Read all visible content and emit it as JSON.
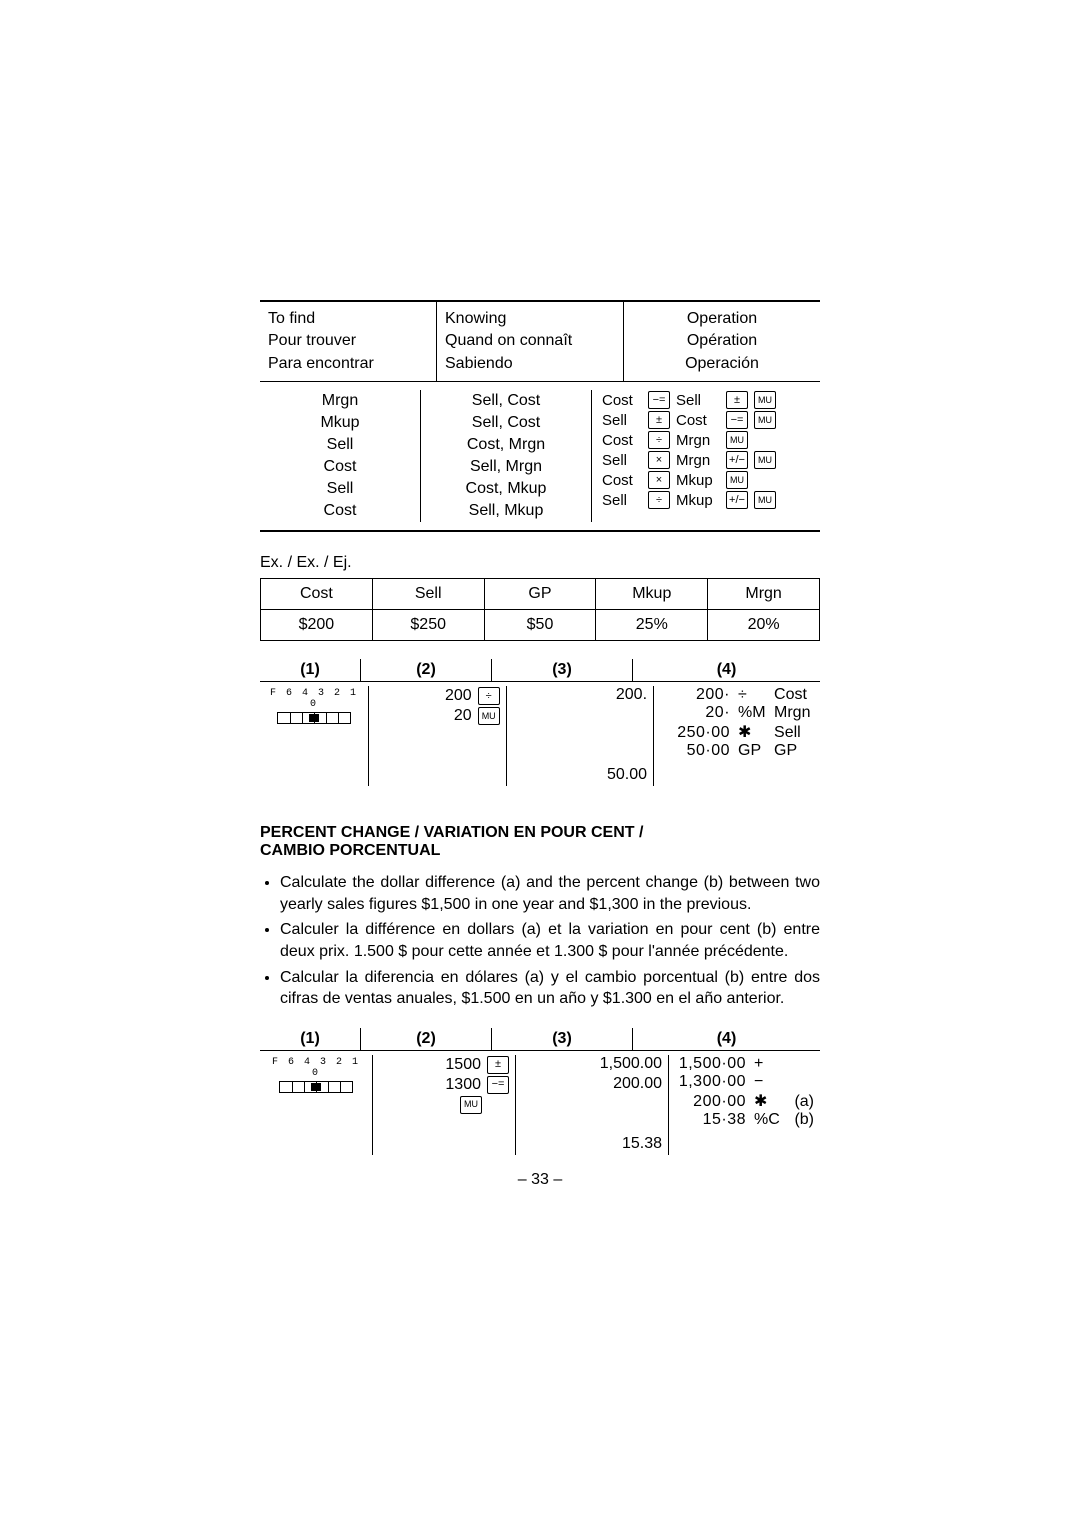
{
  "lookup": {
    "header_col1": "To find\nPour trouver\nPara encontrar",
    "header_col2": "Knowing\nQuand on connaît\nSabiendo",
    "header_col3": "Operation\nOpération\nOperación",
    "rows": [
      {
        "find": "Mrgn",
        "know": "Sell, Cost",
        "a": "Cost",
        "k1": "−=",
        "b": "Sell",
        "k2": "±",
        "k3": "MU"
      },
      {
        "find": "Mkup",
        "know": "Sell, Cost",
        "a": "Sell",
        "k1": "±",
        "b": "Cost",
        "k2": "−=",
        "k3": "MU"
      },
      {
        "find": "Sell",
        "know": "Cost, Mrgn",
        "a": "Cost",
        "k1": "÷",
        "b": "Mrgn",
        "k2": "MU",
        "k3": ""
      },
      {
        "find": "Cost",
        "know": "Sell, Mrgn",
        "a": "Sell",
        "k1": "×",
        "b": "Mrgn",
        "k2": "+/−",
        "k3": "MU"
      },
      {
        "find": "Sell",
        "know": "Cost, Mkup",
        "a": "Cost",
        "k1": "×",
        "b": "Mkup",
        "k2": "MU",
        "k3": ""
      },
      {
        "find": "Cost",
        "know": "Sell, Mkup",
        "a": "Sell",
        "k1": "÷",
        "b": "Mkup",
        "k2": "+/−",
        "k3": "MU"
      }
    ]
  },
  "example_label": "Ex. / Ex. / Ej.",
  "example_table": {
    "cols": [
      {
        "h": "Cost",
        "v": "$200"
      },
      {
        "h": "Sell",
        "v": "$250"
      },
      {
        "h": "GP",
        "v": "$50"
      },
      {
        "h": "Mkup",
        "v": "25%"
      },
      {
        "h": "Mrgn",
        "v": "20%"
      }
    ]
  },
  "steps1": {
    "headers": [
      "(1)",
      "(2)",
      "(3)",
      "(4)"
    ],
    "switch_label": "F 6 4 3 2 1 0",
    "switch_knob_left_pct": 50,
    "col2_rows": [
      {
        "num": "200",
        "key": "÷"
      },
      {
        "num": "20",
        "key": "MU"
      }
    ],
    "col3_rows": [
      "200.",
      "",
      "",
      "",
      "50.00"
    ],
    "col4_rows": [
      {
        "v": "200·",
        "sym": "÷",
        "lbl": "Cost"
      },
      {
        "v": "20·",
        "sym": "%M",
        "lbl": "Mrgn"
      },
      {
        "v": "250·00",
        "sym": "✱",
        "lbl": "Sell"
      },
      {
        "v": "50·00",
        "sym": "GP",
        "lbl": "GP"
      }
    ]
  },
  "section_title_line1": "PERCENT CHANGE / VARIATION EN POUR CENT /",
  "section_title_line2": "CAMBIO PORCENTUAL",
  "bullets": [
    "Calculate the dollar difference (a) and the percent change (b) between two yearly sales figures $1,500 in one year and $1,300 in the previous.",
    "Calculer la différence en dollars (a) et la variation en pour cent (b) entre deux prix. 1.500 $ pour cette année et 1.300 $ pour l'année précédente.",
    "Calcular la diferencia en dólares (a) y el cambio porcentual (b) entre dos cifras de ventas anuales, $1.500 en un año y $1.300 en el año anterior."
  ],
  "steps2": {
    "headers": [
      "(1)",
      "(2)",
      "(3)",
      "(4)"
    ],
    "switch_label": "F 6 4 3 2 1 0",
    "switch_knob_left_pct": 50,
    "col2_rows": [
      {
        "num": "1500",
        "key": "±"
      },
      {
        "num": "1300",
        "key": "−="
      },
      {
        "num": "",
        "key": "MU"
      }
    ],
    "col3_rows": [
      "1,500.00",
      "200.00",
      "",
      "",
      "15.38"
    ],
    "col4_rows": [
      {
        "v": "1,500·00",
        "sym": "+",
        "lbl": "",
        "ab": ""
      },
      {
        "v": "1,300·00",
        "sym": "−",
        "lbl": "",
        "ab": ""
      },
      {
        "v": "200·00",
        "sym": "✱",
        "lbl": "",
        "ab": "(a)"
      },
      {
        "v": "15·38",
        "sym": "%C",
        "lbl": "",
        "ab": "(b)"
      }
    ]
  },
  "page_number": "– 33 –"
}
